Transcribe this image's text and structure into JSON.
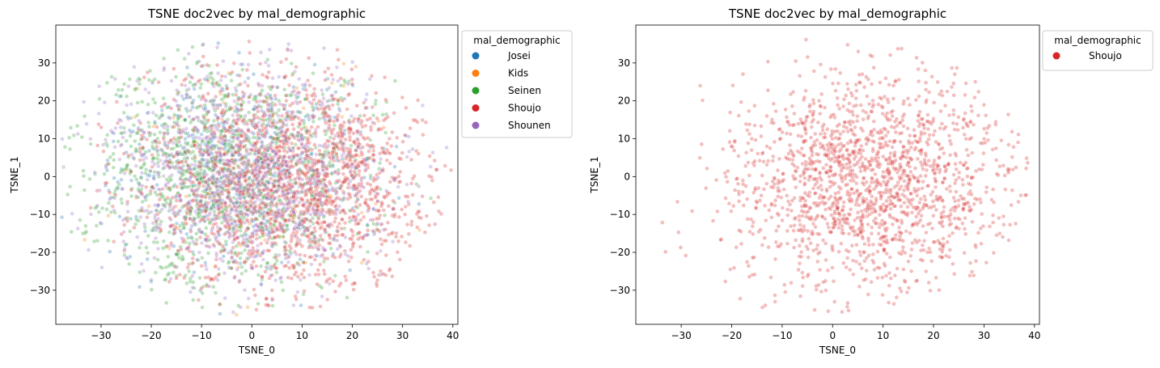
{
  "chart_data": [
    {
      "type": "scatter",
      "title": "TSNE doc2vec by mal_demographic",
      "xlabel": "TSNE_0",
      "ylabel": "TSNE_1",
      "xlim": [
        -39,
        41
      ],
      "ylim": [
        -39,
        40
      ],
      "xticks": [
        -30,
        -20,
        -10,
        0,
        10,
        20,
        30,
        40
      ],
      "yticks": [
        -30,
        -20,
        -10,
        0,
        10,
        20,
        30
      ],
      "xtick_labels": [
        "−30",
        "−20",
        "−10",
        "0",
        "10",
        "20",
        "30",
        "40"
      ],
      "ytick_labels": [
        "−30",
        "−20",
        "−10",
        "0",
        "10",
        "20",
        "30"
      ],
      "grid": false,
      "legend_title": "mal_demographic",
      "legend_placement": "outside-upper-right",
      "point_alpha": 0.3,
      "series": [
        {
          "name": "Josei",
          "color": "#1f77b4",
          "center": [
            -2,
            2
          ],
          "spread": [
            13,
            13
          ],
          "count": 450
        },
        {
          "name": "Kids",
          "color": "#ff7f0e",
          "center": [
            0,
            0
          ],
          "spread": [
            14,
            14
          ],
          "count": 120
        },
        {
          "name": "Seinen",
          "color": "#2ca02c",
          "center": [
            -6,
            0
          ],
          "spread": [
            14,
            14
          ],
          "count": 1150
        },
        {
          "name": "Shoujo",
          "color": "#d62728",
          "center": [
            8,
            -1
          ],
          "spread": [
            14,
            14
          ],
          "count": 1700
        },
        {
          "name": "Shounen",
          "color": "#9467bd",
          "center": [
            -2,
            0
          ],
          "spread": [
            14,
            14
          ],
          "count": 1100
        }
      ]
    },
    {
      "type": "scatter",
      "title": "TSNE doc2vec by mal_demographic",
      "xlabel": "TSNE_0",
      "ylabel": "TSNE_1",
      "xlim": [
        -39,
        41
      ],
      "ylim": [
        -39,
        40
      ],
      "xticks": [
        -30,
        -20,
        -10,
        0,
        10,
        20,
        30,
        40
      ],
      "yticks": [
        -30,
        -20,
        -10,
        0,
        10,
        20,
        30
      ],
      "xtick_labels": [
        "−30",
        "−20",
        "−10",
        "0",
        "10",
        "20",
        "30",
        "40"
      ],
      "ytick_labels": [
        "−30",
        "−20",
        "−10",
        "0",
        "10",
        "20",
        "30"
      ],
      "grid": false,
      "legend_title": "mal_demographic",
      "legend_placement": "outside-upper-right",
      "point_alpha": 0.3,
      "series": [
        {
          "name": "Shoujo",
          "color": "#d62728",
          "center": [
            8,
            -1
          ],
          "spread": [
            14,
            14
          ],
          "count": 1700
        }
      ]
    }
  ]
}
